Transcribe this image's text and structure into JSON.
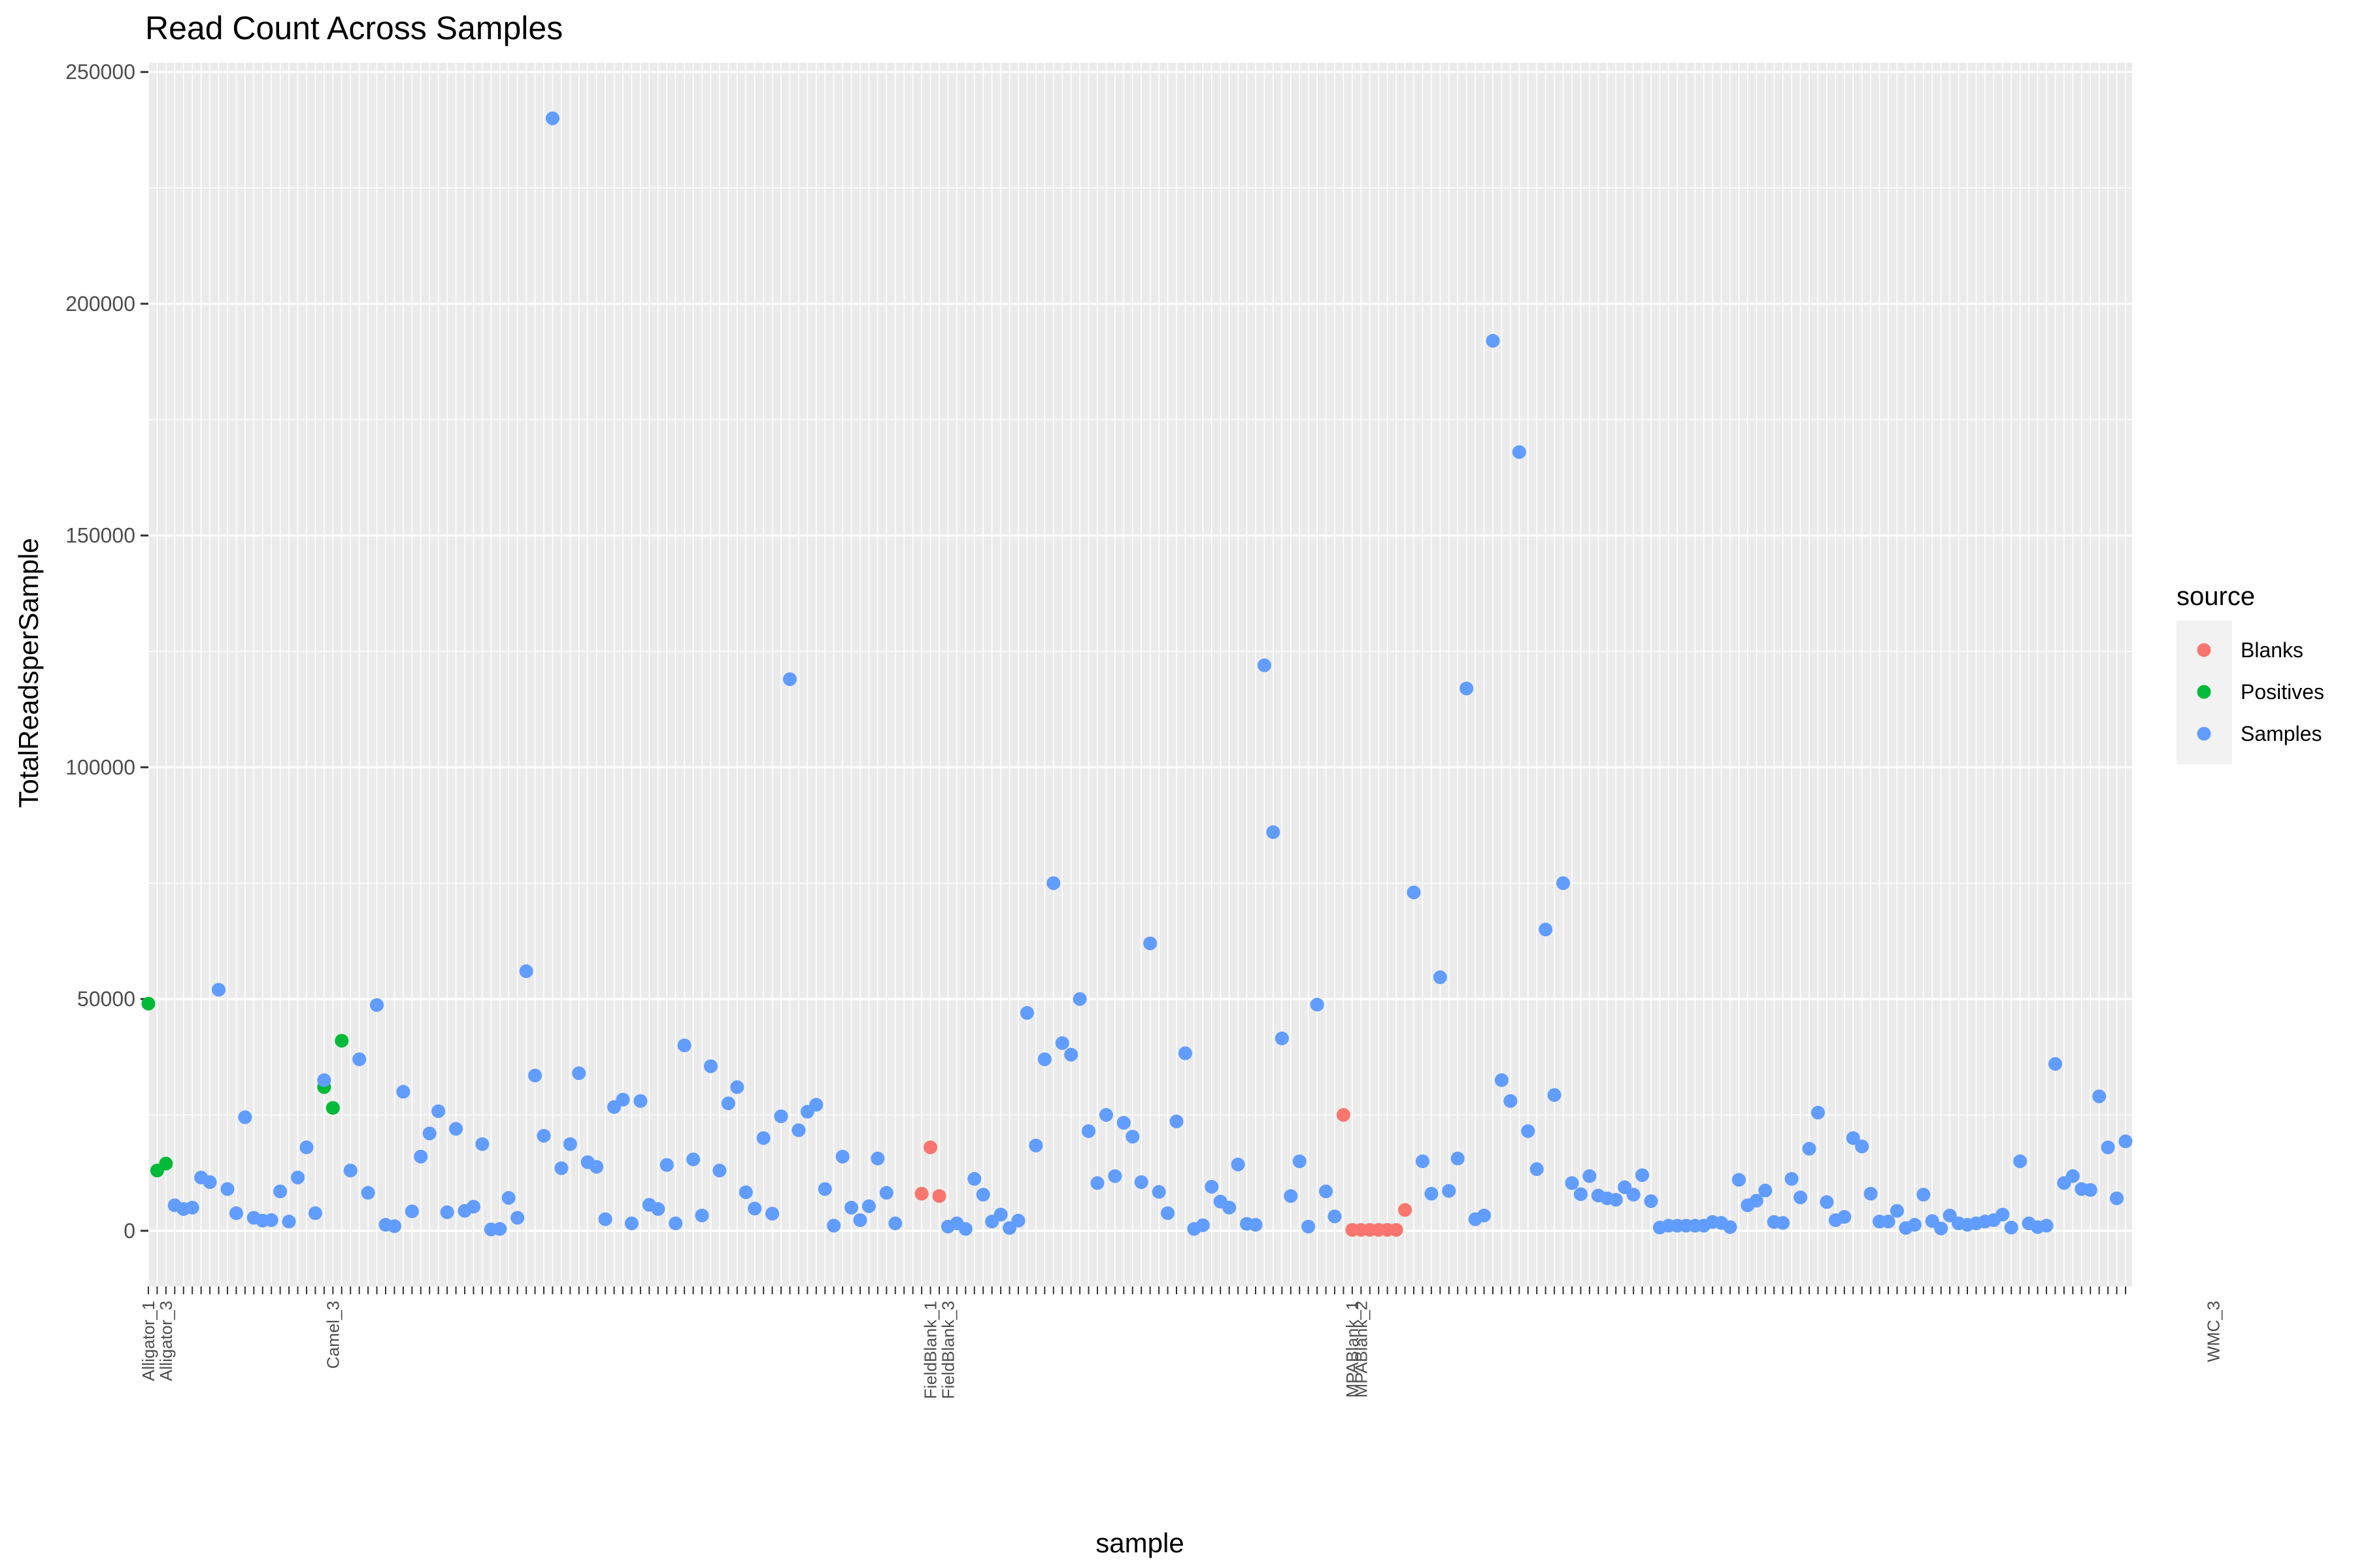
{
  "chart_data": {
    "type": "scatter",
    "title": "Read Count Across Samples",
    "xlabel": "sample",
    "ylabel": "TotalReadsperSample",
    "ylim": [
      -12000,
      252000
    ],
    "yticks": [
      0,
      50000,
      100000,
      150000,
      200000,
      250000
    ],
    "grid": true,
    "legend": {
      "title": "source",
      "placement": "right",
      "entries": [
        {
          "name": "Blanks",
          "color": "#F8766D"
        },
        {
          "name": "Positives",
          "color": "#00BA38"
        },
        {
          "name": "Samples",
          "color": "#619CFF"
        }
      ]
    },
    "x_tick_labels": [
      {
        "index": 0,
        "label": "Alligator_1"
      },
      {
        "index": 2,
        "label": "Alligator_3"
      },
      {
        "index": 21,
        "label": "Camel_3"
      },
      {
        "index": 89,
        "label": "FieldBlank_1"
      },
      {
        "index": 91,
        "label": "FieldBlank_3"
      },
      {
        "index": 137,
        "label": "MPABlank_1"
      },
      {
        "index": 138,
        "label": "MPABlank_2"
      },
      {
        "index": 235,
        "label": "WMC_3"
      }
    ],
    "series": [
      {
        "name": "Blanks",
        "color": "#F8766D",
        "points": [
          [
            88,
            8000
          ],
          [
            89,
            18000
          ],
          [
            90,
            7500
          ],
          [
            136,
            25000
          ],
          [
            137,
            200
          ],
          [
            138,
            200
          ],
          [
            139,
            200
          ],
          [
            140,
            200
          ],
          [
            141,
            200
          ],
          [
            142,
            200
          ],
          [
            143,
            4500
          ]
        ]
      },
      {
        "name": "Positives",
        "color": "#00BA38",
        "points": [
          [
            0,
            49000
          ],
          [
            1,
            13000
          ],
          [
            2,
            14500
          ],
          [
            20,
            31000
          ],
          [
            21,
            26500
          ],
          [
            22,
            41000
          ]
        ]
      },
      {
        "name": "Samples",
        "color": "#619CFF",
        "points": [
          [
            3,
            5500
          ],
          [
            4,
            4700
          ],
          [
            5,
            5000
          ],
          [
            6,
            11500
          ],
          [
            7,
            10500
          ],
          [
            8,
            52000
          ],
          [
            9,
            9000
          ],
          [
            10,
            3800
          ],
          [
            11,
            24500
          ],
          [
            12,
            2800
          ],
          [
            13,
            2200
          ],
          [
            14,
            2300
          ],
          [
            15,
            8500
          ],
          [
            16,
            2000
          ],
          [
            17,
            11500
          ],
          [
            18,
            18000
          ],
          [
            19,
            3800
          ],
          [
            20,
            32500
          ],
          [
            23,
            13000
          ],
          [
            24,
            37000
          ],
          [
            25,
            8200
          ],
          [
            26,
            48700
          ],
          [
            27,
            1300
          ],
          [
            28,
            1000
          ],
          [
            29,
            30000
          ],
          [
            30,
            4200
          ],
          [
            31,
            16000
          ],
          [
            32,
            21000
          ],
          [
            33,
            25800
          ],
          [
            34,
            4000
          ],
          [
            35,
            22000
          ],
          [
            36,
            4300
          ],
          [
            37,
            5200
          ],
          [
            38,
            18700
          ],
          [
            39,
            300
          ],
          [
            40,
            400
          ],
          [
            41,
            7100
          ],
          [
            42,
            2800
          ],
          [
            43,
            56000
          ],
          [
            44,
            33500
          ],
          [
            45,
            20500
          ],
          [
            46,
            240000
          ],
          [
            47,
            13500
          ],
          [
            48,
            18700
          ],
          [
            49,
            34000
          ],
          [
            50,
            14800
          ],
          [
            51,
            13800
          ],
          [
            52,
            2500
          ],
          [
            53,
            26700
          ],
          [
            54,
            28300
          ],
          [
            55,
            1600
          ],
          [
            56,
            28000
          ],
          [
            57,
            5600
          ],
          [
            58,
            4700
          ],
          [
            59,
            14200
          ],
          [
            60,
            1600
          ],
          [
            61,
            40000
          ],
          [
            62,
            15400
          ],
          [
            63,
            3300
          ],
          [
            64,
            35500
          ],
          [
            65,
            13000
          ],
          [
            66,
            27500
          ],
          [
            67,
            31000
          ],
          [
            68,
            8300
          ],
          [
            69,
            4800
          ],
          [
            70,
            20000
          ],
          [
            71,
            3700
          ],
          [
            72,
            24700
          ],
          [
            73,
            119000
          ],
          [
            74,
            21700
          ],
          [
            75,
            25700
          ],
          [
            76,
            27200
          ],
          [
            77,
            9000
          ],
          [
            78,
            1100
          ],
          [
            79,
            16000
          ],
          [
            80,
            5000
          ],
          [
            81,
            2300
          ],
          [
            82,
            5300
          ],
          [
            83,
            15600
          ],
          [
            84,
            8200
          ],
          [
            85,
            1600
          ],
          [
            91,
            900
          ],
          [
            92,
            1600
          ],
          [
            93,
            400
          ],
          [
            94,
            11200
          ],
          [
            95,
            7800
          ],
          [
            96,
            2000
          ],
          [
            97,
            3500
          ],
          [
            98,
            600
          ],
          [
            99,
            2200
          ],
          [
            100,
            47000
          ],
          [
            101,
            18400
          ],
          [
            102,
            37000
          ],
          [
            103,
            75000
          ],
          [
            104,
            40500
          ],
          [
            105,
            38000
          ],
          [
            106,
            50000
          ],
          [
            107,
            21500
          ],
          [
            108,
            10300
          ],
          [
            109,
            25000
          ],
          [
            110,
            11800
          ],
          [
            111,
            23300
          ],
          [
            112,
            20300
          ],
          [
            113,
            10500
          ],
          [
            114,
            62000
          ],
          [
            115,
            8400
          ],
          [
            116,
            3800
          ],
          [
            117,
            23600
          ],
          [
            118,
            38300
          ],
          [
            119,
            400
          ],
          [
            120,
            1200
          ],
          [
            121,
            9500
          ],
          [
            122,
            6300
          ],
          [
            123,
            5000
          ],
          [
            124,
            14300
          ],
          [
            125,
            1500
          ],
          [
            126,
            1300
          ],
          [
            127,
            122000
          ],
          [
            128,
            86000
          ],
          [
            129,
            41500
          ],
          [
            130,
            7500
          ],
          [
            131,
            15000
          ],
          [
            132,
            900
          ],
          [
            133,
            48800
          ],
          [
            134,
            8500
          ],
          [
            135,
            3100
          ],
          [
            144,
            73000
          ],
          [
            145,
            15000
          ],
          [
            146,
            8000
          ],
          [
            147,
            54700
          ],
          [
            148,
            8600
          ],
          [
            149,
            15600
          ],
          [
            150,
            117000
          ],
          [
            151,
            2500
          ],
          [
            152,
            3300
          ],
          [
            153,
            192000
          ],
          [
            154,
            32500
          ],
          [
            155,
            28000
          ],
          [
            156,
            168000
          ],
          [
            157,
            21500
          ],
          [
            158,
            13300
          ],
          [
            159,
            65000
          ],
          [
            160,
            29300
          ],
          [
            161,
            75000
          ],
          [
            162,
            10300
          ],
          [
            163,
            7900
          ],
          [
            164,
            11800
          ],
          [
            165,
            7600
          ],
          [
            166,
            7000
          ],
          [
            167,
            6700
          ],
          [
            168,
            9400
          ],
          [
            169,
            7800
          ],
          [
            170,
            12000
          ],
          [
            171,
            6400
          ],
          [
            172,
            700
          ],
          [
            173,
            1100
          ],
          [
            174,
            1100
          ],
          [
            175,
            1100
          ],
          [
            176,
            1100
          ],
          [
            177,
            1100
          ],
          [
            178,
            1900
          ],
          [
            179,
            1700
          ],
          [
            180,
            800
          ],
          [
            181,
            11000
          ],
          [
            182,
            5500
          ],
          [
            183,
            6500
          ],
          [
            184,
            8700
          ],
          [
            185,
            1900
          ],
          [
            186,
            1700
          ],
          [
            187,
            11200
          ],
          [
            188,
            7200
          ],
          [
            189,
            17700
          ],
          [
            190,
            25500
          ],
          [
            191,
            6200
          ],
          [
            192,
            2300
          ],
          [
            193,
            3000
          ],
          [
            194,
            20000
          ],
          [
            195,
            18200
          ],
          [
            196,
            8000
          ],
          [
            197,
            2000
          ],
          [
            198,
            2000
          ],
          [
            199,
            4300
          ],
          [
            200,
            600
          ],
          [
            201,
            1300
          ],
          [
            202,
            7800
          ],
          [
            203,
            2100
          ],
          [
            204,
            500
          ],
          [
            205,
            3300
          ],
          [
            206,
            1600
          ],
          [
            207,
            1300
          ],
          [
            208,
            1600
          ],
          [
            209,
            2000
          ],
          [
            210,
            2300
          ],
          [
            211,
            3500
          ],
          [
            212,
            700
          ],
          [
            213,
            15000
          ],
          [
            214,
            1600
          ],
          [
            215,
            800
          ],
          [
            216,
            1100
          ],
          [
            217,
            36000
          ],
          [
            218,
            10300
          ],
          [
            219,
            11800
          ],
          [
            220,
            9000
          ],
          [
            221,
            8800
          ],
          [
            222,
            29000
          ],
          [
            223,
            18000
          ],
          [
            224,
            7000
          ],
          [
            225,
            19300
          ]
        ]
      }
    ]
  }
}
